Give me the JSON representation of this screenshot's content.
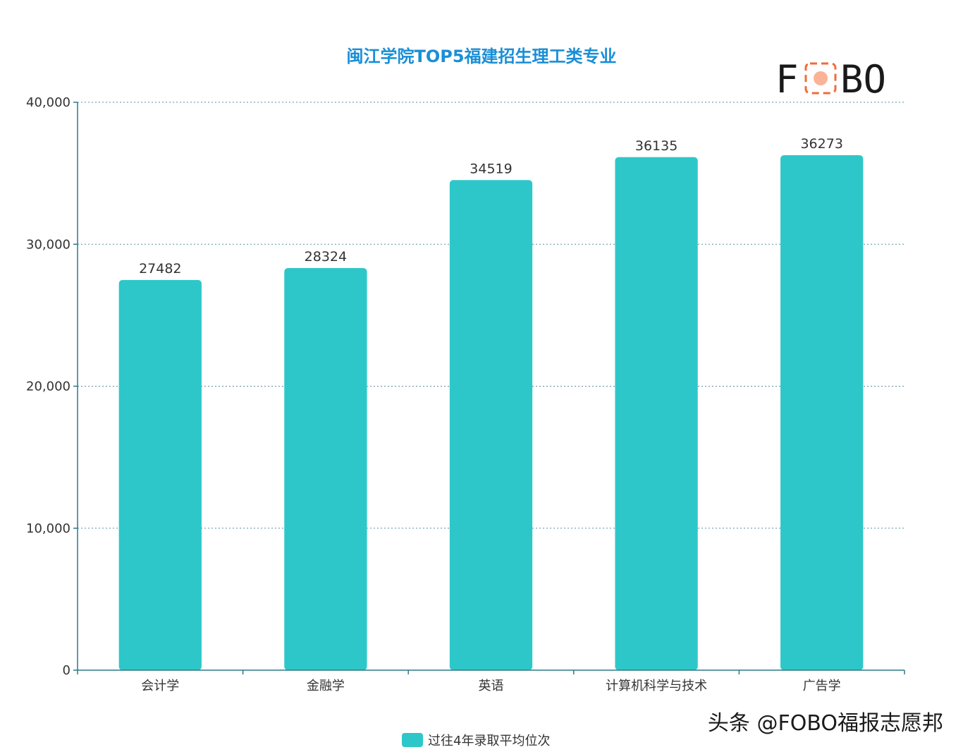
{
  "chart_data": {
    "type": "bar",
    "title": "闽江学院TOP5福建招生理工类专业",
    "categories": [
      "会计学",
      "金融学",
      "英语",
      "计算机科学与技术",
      "广告学"
    ],
    "series": [
      {
        "name": "过往4年录取平均位次",
        "values": [
          27482,
          28324,
          34519,
          36135,
          36273
        ]
      }
    ],
    "data_labels": [
      "27482",
      "28324",
      "34519",
      "36135",
      "36273"
    ],
    "xlabel": "",
    "ylabel": "",
    "ylim": [
      0,
      40000
    ],
    "yticks": [
      0,
      10000,
      20000,
      30000,
      40000
    ],
    "ytick_labels": [
      "0",
      "10,000",
      "20,000",
      "30,000",
      "40,000"
    ],
    "grid": "horizontal-dotted",
    "legend_position": "bottom-center",
    "colors": {
      "bar": "#2ec7c9",
      "title": "#1a8fd6",
      "axis": "#2c7a86",
      "grid": "#5a8fa0",
      "label": "#333333"
    }
  },
  "logo": {
    "left": "F",
    "right": "BO",
    "badge_color": "#f26b3a"
  },
  "watermark": "头条 @FOBO福报志愿邦"
}
